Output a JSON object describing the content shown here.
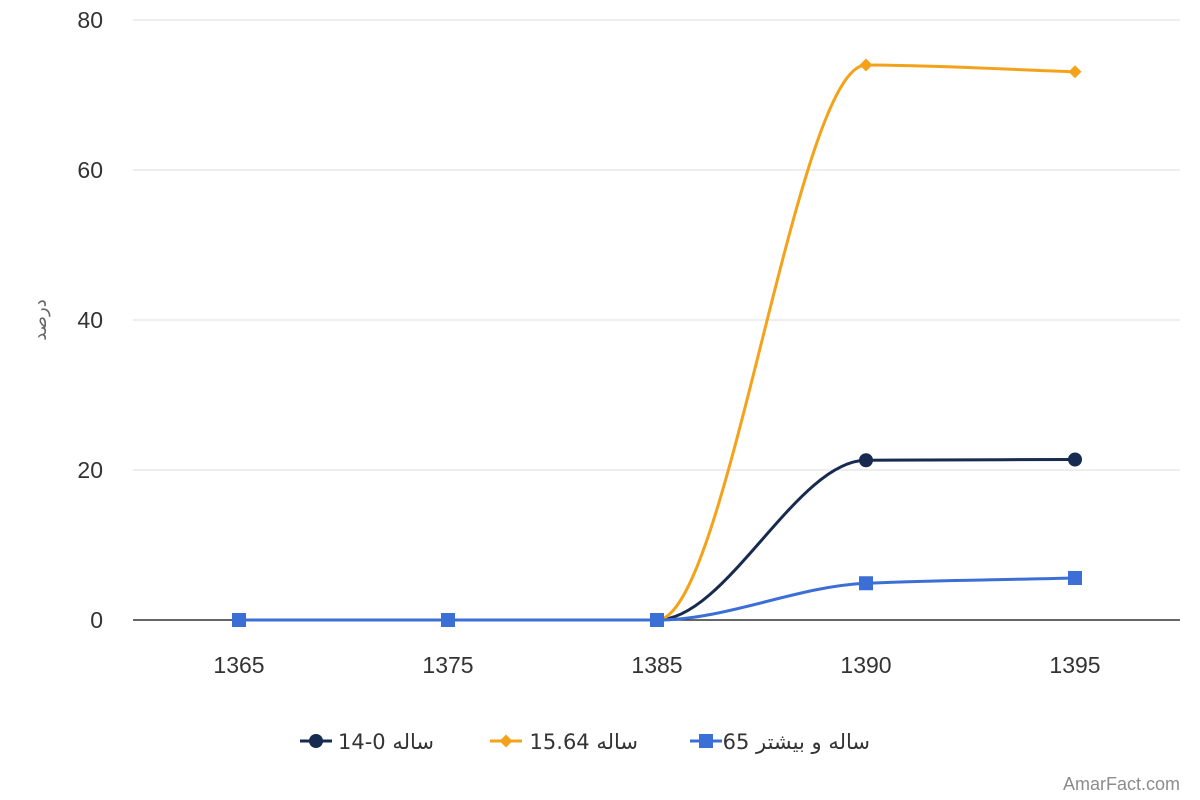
{
  "chart_data": {
    "type": "line",
    "categories": [
      "1365",
      "1375",
      "1385",
      "1390",
      "1395"
    ],
    "series": [
      {
        "name": "ساله 0-14",
        "values": [
          0,
          0,
          0,
          21.3,
          21.4
        ],
        "color": "#172a4f",
        "marker": "circle"
      },
      {
        "name": "ساله 15.64",
        "values": [
          0,
          0,
          0,
          74.0,
          73.1
        ],
        "color": "#f5a21b",
        "marker": "diamond"
      },
      {
        "name": "ساله و بیشتر 65",
        "values": [
          0,
          0,
          0,
          4.9,
          5.6
        ],
        "color": "#3b6fd6",
        "marker": "square"
      }
    ],
    "ylabel": "درصد",
    "ylim": [
      0,
      80
    ],
    "yticks": [
      "0",
      "20",
      "40",
      "60",
      "80"
    ],
    "grid": true,
    "legend": "bottom"
  },
  "watermark": "AmarFact.com"
}
